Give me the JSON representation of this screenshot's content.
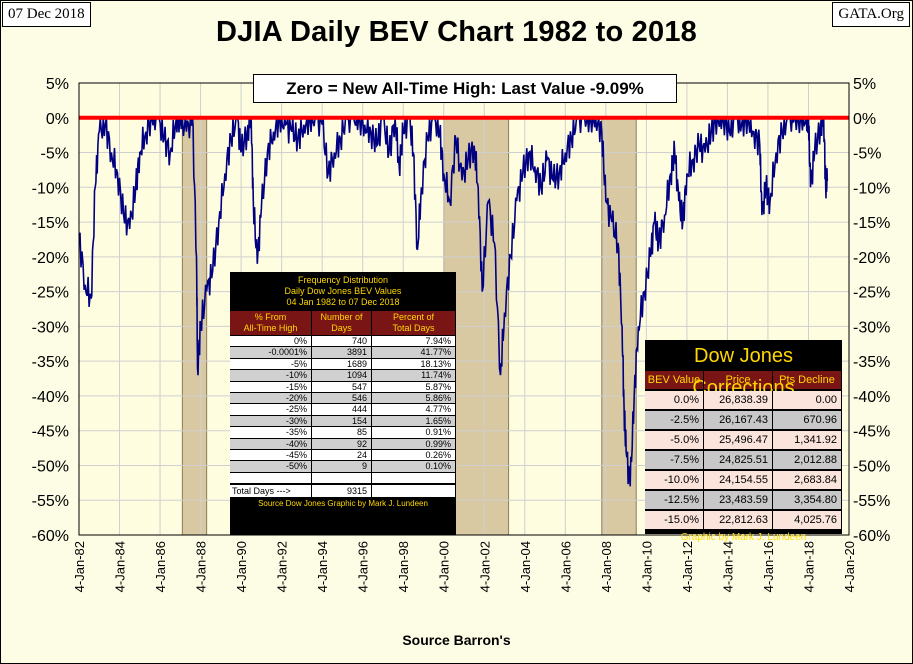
{
  "header": {
    "date": "07 Dec 2018",
    "site": "GATA.Org",
    "title": "DJIA Daily BEV Chart 1982 to 2018",
    "last_value_label": "Zero = New All-Time High: Last Value  -9.09%"
  },
  "colors": {
    "background": "#fdfde6",
    "series": "#000080",
    "zero_line": "#ff0000",
    "shade": "#d8c9a3",
    "table_header": "#7a1515",
    "table_text_gold": "#ffd700"
  },
  "chart_data": {
    "type": "line",
    "title": "DJIA Daily BEV Chart 1982 to 2018",
    "xlabel": "Source Barron's",
    "ylabel": "",
    "x_start_year": 1982,
    "x_end_year": 2020,
    "ylim": [
      -60,
      5
    ],
    "y_ticks": [
      5,
      0,
      -5,
      -10,
      -15,
      -20,
      -25,
      -30,
      -35,
      -40,
      -45,
      -50,
      -55,
      -60
    ],
    "y_tick_labels_left": [
      "5%",
      "0%",
      "-5%",
      "-10%",
      "-15%",
      "-20%",
      "-25%",
      "-30%",
      "-35%",
      "-40%",
      "-45%",
      "-50%",
      "-55%",
      "-60%"
    ],
    "y_tick_labels_right": [
      "5%",
      "0%",
      "-5%",
      "-10%",
      "-15%",
      "-20%",
      "-25%",
      "-30%",
      "-35%",
      "-40%",
      "-45%",
      "-50%",
      "-55%",
      "-60%"
    ],
    "x_tick_labels": [
      "4-Jan-82",
      "4-Jan-84",
      "4-Jan-86",
      "4-Jan-88",
      "4-Jan-90",
      "4-Jan-92",
      "4-Jan-94",
      "4-Jan-96",
      "4-Jan-98",
      "4-Jan-00",
      "4-Jan-02",
      "4-Jan-04",
      "4-Jan-06",
      "4-Jan-08",
      "4-Jan-10",
      "4-Jan-12",
      "4-Jan-14",
      "4-Jan-16",
      "4-Jan-18",
      "4-Jan-20"
    ],
    "zero_line_value": 0,
    "shaded_periods": [
      {
        "start": 1987.1,
        "end": 1988.3
      },
      {
        "start": 2000.0,
        "end": 2003.2
      },
      {
        "start": 2007.8,
        "end": 2009.5
      }
    ],
    "series": [
      {
        "name": "DJIA BEV",
        "x": [
          1982.0,
          1982.3,
          1982.6,
          1982.8,
          1983.0,
          1983.3,
          1983.6,
          1983.9,
          1984.2,
          1984.5,
          1984.8,
          1985.0,
          1985.3,
          1985.6,
          1985.9,
          1986.2,
          1986.5,
          1986.8,
          1987.0,
          1987.3,
          1987.6,
          1987.8,
          1987.85,
          1988.0,
          1988.3,
          1988.6,
          1988.9,
          1989.2,
          1989.5,
          1989.8,
          1990.0,
          1990.3,
          1990.5,
          1990.6,
          1990.8,
          1991.0,
          1991.3,
          1991.6,
          1991.9,
          1992.2,
          1992.5,
          1992.8,
          1993.1,
          1993.4,
          1993.7,
          1994.0,
          1994.3,
          1994.6,
          1994.9,
          1995.2,
          1995.5,
          1995.8,
          1996.1,
          1996.4,
          1996.7,
          1997.0,
          1997.3,
          1997.6,
          1997.8,
          1998.0,
          1998.3,
          1998.5,
          1998.7,
          1998.9,
          1999.2,
          1999.5,
          1999.8,
          2000.0,
          2000.3,
          2000.6,
          2000.9,
          2001.2,
          2001.5,
          2001.7,
          2001.9,
          2002.2,
          2002.5,
          2002.8,
          2003.0,
          2003.3,
          2003.6,
          2003.9,
          2004.2,
          2004.5,
          2004.8,
          2005.1,
          2005.4,
          2005.7,
          2006.0,
          2006.3,
          2006.6,
          2006.9,
          2007.2,
          2007.5,
          2007.8,
          2008.0,
          2008.3,
          2008.6,
          2008.8,
          2008.9,
          2009.0,
          2009.2,
          2009.4,
          2009.6,
          2009.9,
          2010.2,
          2010.4,
          2010.6,
          2010.9,
          2011.2,
          2011.4,
          2011.6,
          2011.8,
          2012.0,
          2012.3,
          2012.6,
          2012.9,
          2013.2,
          2013.5,
          2013.8,
          2014.1,
          2014.4,
          2014.7,
          2015.0,
          2015.3,
          2015.6,
          2015.7,
          2015.9,
          2016.1,
          2016.4,
          2016.7,
          2017.0,
          2017.3,
          2017.6,
          2017.9,
          2018.0,
          2018.1,
          2018.3,
          2018.6,
          2018.75,
          2018.85,
          2018.93
        ],
        "values": [
          -17,
          -24,
          -26,
          -10,
          -2,
          -1,
          -5,
          -8,
          -14,
          -16,
          -10,
          -5,
          -2,
          0,
          0,
          -3,
          -5,
          0,
          0,
          -2,
          0,
          -20,
          -36,
          -30,
          -25,
          -22,
          -15,
          -8,
          -3,
          0,
          -5,
          -2,
          0,
          -12,
          -21,
          -13,
          -5,
          -2,
          0,
          -1,
          -2,
          -3,
          -1,
          0,
          0,
          -1,
          -8,
          -5,
          -3,
          0,
          0,
          0,
          -1,
          -2,
          -4,
          0,
          -5,
          0,
          -7,
          -2,
          0,
          -5,
          -19,
          -10,
          -3,
          0,
          -2,
          -8,
          -12,
          -3,
          -9,
          -6,
          -4,
          -10,
          -25,
          -12,
          -18,
          -37,
          -28,
          -20,
          -12,
          -8,
          -5,
          -7,
          -10,
          -6,
          -9,
          -8,
          -5,
          -3,
          0,
          0,
          0,
          0,
          -2,
          -12,
          -15,
          -18,
          -30,
          -42,
          -48,
          -53,
          -40,
          -30,
          -25,
          -20,
          -15,
          -18,
          -14,
          -8,
          -5,
          -12,
          -15,
          -8,
          -6,
          -4,
          -5,
          -2,
          0,
          0,
          -2,
          0,
          -1,
          0,
          -2,
          -4,
          -14,
          -10,
          -12,
          -5,
          -2,
          0,
          0,
          0,
          0,
          0,
          -10,
          -5,
          -1,
          0,
          -10,
          -9.09
        ]
      }
    ]
  },
  "freq_table": {
    "title_lines": [
      "Frequency Distribution",
      "Daily Dow Jones BEV Values",
      "04 Jan 1982 to 07 Dec 2018"
    ],
    "columns": [
      [
        "% From",
        "All-Time High"
      ],
      [
        "Number of",
        "Days"
      ],
      [
        "Percent of",
        "Total Days"
      ]
    ],
    "rows": [
      [
        "0%",
        "740",
        "7.94%"
      ],
      [
        "-0.0001%",
        "3891",
        "41.77%"
      ],
      [
        "-5%",
        "1689",
        "18.13%"
      ],
      [
        "-10%",
        "1094",
        "11.74%"
      ],
      [
        "-15%",
        "547",
        "5.87%"
      ],
      [
        "-20%",
        "546",
        "5.86%"
      ],
      [
        "-25%",
        "444",
        "4.77%"
      ],
      [
        "-30%",
        "154",
        "1.65%"
      ],
      [
        "-35%",
        "85",
        "0.91%"
      ],
      [
        "-40%",
        "92",
        "0.99%"
      ],
      [
        "-45%",
        "24",
        "0.26%"
      ],
      [
        "-50%",
        "9",
        "0.10%"
      ],
      [
        "",
        "",
        ""
      ]
    ],
    "total_label": "Total Days --->",
    "total_value": "9315",
    "credit": "Source Dow Jones   Graphic by Mark J. Lundeen"
  },
  "corrections_table": {
    "title": "Dow Jones Corrections",
    "columns": [
      "BEV Value",
      "Price",
      "Pts Decline"
    ],
    "rows": [
      [
        "0.0%",
        "26,838.39",
        "0.00"
      ],
      [
        "-2.5%",
        "26,167.43",
        "670.96"
      ],
      [
        "-5.0%",
        "25,496.47",
        "1,341.92"
      ],
      [
        "-7.5%",
        "24,825.51",
        "2,012.88"
      ],
      [
        "-10.0%",
        "24,154.55",
        "2,683.84"
      ],
      [
        "-12.5%",
        "23,483.59",
        "3,354.80"
      ],
      [
        "-15.0%",
        "22,812.63",
        "4,025.76"
      ]
    ],
    "credit": "Graphic by Mark J. Lundeen"
  },
  "footer": {
    "source": "Source Barron's"
  }
}
